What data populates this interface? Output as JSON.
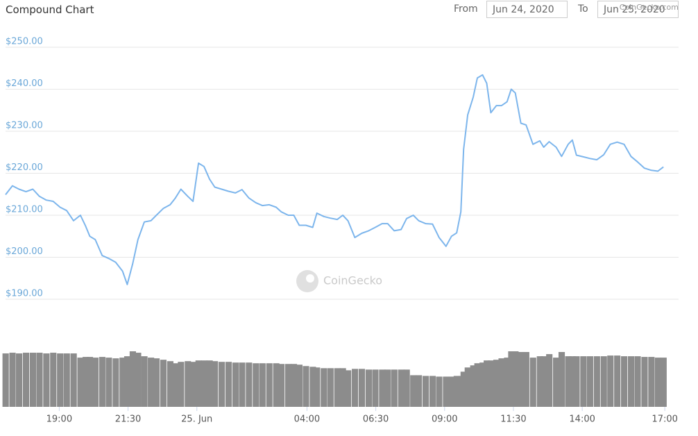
{
  "chart_data": {
    "type": "line",
    "title": "Compound Chart",
    "range_from_label": "From",
    "range_from": "Jun 24, 2020",
    "range_to_label": "To",
    "range_to": "Jun 25, 2020",
    "credit": "CoinGecko.com",
    "watermark": "CoinGecko",
    "grid": true,
    "x": [
      17.05,
      17.3,
      17.54,
      17.79,
      18.04,
      18.28,
      18.53,
      18.78,
      19.03,
      19.27,
      19.52,
      19.77,
      19.96,
      20.11,
      20.31,
      20.56,
      20.8,
      21.05,
      21.3,
      21.47,
      21.67,
      21.86,
      22.09,
      22.33,
      22.53,
      22.78,
      23.03,
      23.22,
      23.42,
      23.67,
      23.86,
      24.06,
      24.26,
      24.46,
      24.65,
      24.9,
      25.15,
      25.4,
      25.64,
      25.89,
      26.14,
      26.38,
      26.63,
      26.88,
      27.07,
      27.32,
      27.52,
      27.72,
      27.96,
      28.21,
      28.36,
      28.61,
      28.85,
      29.1,
      29.3,
      29.49,
      29.74,
      29.99,
      30.24,
      30.48,
      30.73,
      30.93,
      31.17,
      31.42,
      31.62,
      31.86,
      32.06,
      32.31,
      32.56,
      32.8,
      33.05,
      33.25,
      33.44,
      33.59,
      33.69,
      33.84,
      34.04,
      34.19,
      34.38,
      34.53,
      34.68,
      34.88,
      35.07,
      35.27,
      35.42,
      35.57,
      35.77,
      35.96,
      36.21,
      36.46,
      36.6,
      36.8,
      37.05,
      37.25,
      37.49,
      37.64,
      37.79,
      38.04,
      38.28,
      38.53,
      38.78,
      39.02,
      39.27,
      39.52,
      39.77,
      40.01,
      40.26,
      40.51,
      40.75,
      40.95
    ],
    "xlim": [
      17.05,
      41.5
    ],
    "xticks": [
      {
        "value": 19,
        "label": "19:00"
      },
      {
        "value": 21.5,
        "label": "21:30"
      },
      {
        "value": 24,
        "label": "25. Jun"
      },
      {
        "value": 28,
        "label": "04:00"
      },
      {
        "value": 30.5,
        "label": "06:30"
      },
      {
        "value": 33,
        "label": "09:00"
      },
      {
        "value": 35.5,
        "label": "11:30"
      },
      {
        "value": 38,
        "label": "14:00"
      },
      {
        "value": 41,
        "label": "17:00"
      }
    ],
    "ylim": [
      190,
      250
    ],
    "yticks": [
      {
        "value": 190,
        "label": "$190.00"
      },
      {
        "value": 200,
        "label": "$200.00"
      },
      {
        "value": 210,
        "label": "$210.00"
      },
      {
        "value": 220,
        "label": "$220.00"
      },
      {
        "value": 230,
        "label": "$230.00"
      },
      {
        "value": 240,
        "label": "$240.00"
      },
      {
        "value": 250,
        "label": "$250.00"
      }
    ],
    "series": [
      {
        "type": "line",
        "color": "#7cb5ec",
        "values": [
          214.9,
          217.0,
          216.2,
          215.6,
          216.2,
          214.5,
          213.6,
          213.3,
          211.9,
          211.1,
          208.7,
          210.0,
          207.4,
          205.0,
          204.2,
          200.4,
          199.7,
          198.8,
          196.7,
          193.5,
          198.5,
          204.2,
          208.4,
          208.7,
          210.0,
          211.6,
          212.5,
          214.1,
          216.2,
          214.5,
          213.3,
          222.4,
          221.6,
          218.6,
          216.7,
          216.2,
          215.7,
          215.3,
          216.1,
          214.1,
          213.0,
          212.3,
          212.5,
          211.9,
          210.8,
          210.0,
          210.0,
          207.6,
          207.6,
          207.1,
          210.5,
          209.7,
          209.3,
          209.0,
          210.0,
          208.7,
          204.7,
          205.7,
          206.3,
          207.1,
          208.0,
          208.0,
          206.3,
          206.6,
          209.2,
          210.0,
          208.7,
          208.0,
          207.9,
          204.7,
          202.6,
          205.0,
          205.8,
          210.8,
          225.7,
          233.9,
          238.1,
          242.7,
          243.4,
          241.4,
          234.4,
          236.1,
          236.1,
          237.0,
          240.0,
          239.1,
          231.9,
          231.5,
          226.9,
          227.7,
          226.2,
          227.5,
          226.2,
          224.0,
          226.9,
          227.9,
          224.3,
          223.9,
          223.5,
          223.2,
          224.4,
          226.9,
          227.4,
          226.9,
          224.0,
          222.7,
          221.2,
          220.7,
          220.5,
          221.5
        ]
      },
      {
        "type": "column",
        "color": "#8c8c8c",
        "values": [
          76,
          77,
          76,
          77,
          77,
          77,
          76,
          77,
          76,
          76,
          76,
          70,
          71,
          71,
          70,
          71,
          70,
          69,
          70,
          72,
          79,
          77,
          72,
          70,
          69,
          67,
          65,
          62,
          64,
          65,
          64,
          66,
          66,
          66,
          65,
          64,
          64,
          63,
          63,
          63,
          62,
          62,
          62,
          62,
          61,
          61,
          61,
          60,
          58,
          57,
          56,
          55,
          55,
          55,
          55,
          52,
          54,
          54,
          53,
          53,
          53,
          53,
          53,
          53,
          53,
          45,
          45,
          44,
          44,
          43,
          43,
          43,
          44,
          44,
          50,
          56,
          59,
          62,
          63,
          66,
          66,
          67,
          69,
          70,
          79,
          79,
          78,
          78,
          70,
          72,
          72,
          75,
          70,
          78,
          72,
          72,
          72,
          72,
          72,
          72,
          72,
          73,
          73,
          72,
          72,
          72,
          71,
          71,
          70,
          70
        ]
      }
    ]
  }
}
